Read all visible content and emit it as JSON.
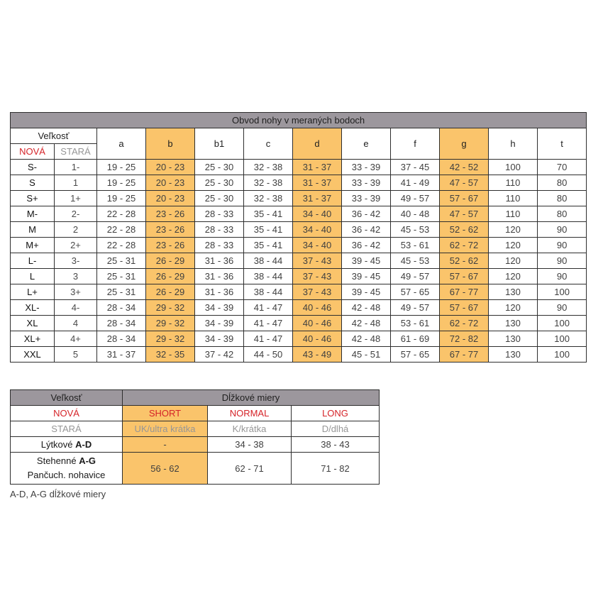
{
  "colors": {
    "band": "#9C979D",
    "orange": "#FAC46B",
    "red": "#D52328",
    "graytext": "#969696",
    "border": "#2E2E2E"
  },
  "main_table": {
    "title": "Obvod nohy v meraných bodoch",
    "size_header": "Veľkosť",
    "new_label": "NOVÁ",
    "old_label": "STARÁ",
    "measure_columns": [
      "a",
      "b",
      "b1",
      "c",
      "d",
      "e",
      "f",
      "g",
      "h",
      "t"
    ],
    "highlight_columns": [
      1,
      4,
      7
    ],
    "rows": [
      {
        "new": "S-",
        "old": "1-",
        "values": [
          "19 - 25",
          "20 - 23",
          "25 - 30",
          "32 - 38",
          "31 - 37",
          "33 - 39",
          "37 - 45",
          "42 - 52",
          "100",
          "70"
        ]
      },
      {
        "new": "S",
        "old": "1",
        "values": [
          "19 - 25",
          "20 - 23",
          "25 - 30",
          "32 - 38",
          "31 - 37",
          "33 - 39",
          "41 - 49",
          "47 - 57",
          "110",
          "80"
        ]
      },
      {
        "new": "S+",
        "old": "1+",
        "values": [
          "19 - 25",
          "20 - 23",
          "25 - 30",
          "32 - 38",
          "31 - 37",
          "33 - 39",
          "49 - 57",
          "57 - 67",
          "110",
          "80"
        ]
      },
      {
        "new": "M-",
        "old": "2-",
        "values": [
          "22 - 28",
          "23 - 26",
          "28 - 33",
          "35 - 41",
          "34 - 40",
          "36 - 42",
          "40 - 48",
          "47 - 57",
          "110",
          "80"
        ]
      },
      {
        "new": "M",
        "old": "2",
        "values": [
          "22 - 28",
          "23 - 26",
          "28 - 33",
          "35 - 41",
          "34 - 40",
          "36 - 42",
          "45 - 53",
          "52 - 62",
          "120",
          "90"
        ]
      },
      {
        "new": "M+",
        "old": "2+",
        "values": [
          "22 - 28",
          "23 - 26",
          "28 - 33",
          "35 - 41",
          "34 - 40",
          "36 - 42",
          "53 - 61",
          "62 - 72",
          "120",
          "90"
        ]
      },
      {
        "new": "L-",
        "old": "3-",
        "values": [
          "25 - 31",
          "26 - 29",
          "31 - 36",
          "38 - 44",
          "37 - 43",
          "39 - 45",
          "45 - 53",
          "52 - 62",
          "120",
          "90"
        ]
      },
      {
        "new": "L",
        "old": "3",
        "values": [
          "25 - 31",
          "26 - 29",
          "31 - 36",
          "38 - 44",
          "37 - 43",
          "39 - 45",
          "49 - 57",
          "57 - 67",
          "120",
          "90"
        ]
      },
      {
        "new": "L+",
        "old": "3+",
        "values": [
          "25 - 31",
          "26 - 29",
          "31 - 36",
          "38 - 44",
          "37 - 43",
          "39 - 45",
          "57 - 65",
          "67 - 77",
          "130",
          "100"
        ]
      },
      {
        "new": "XL-",
        "old": "4-",
        "values": [
          "28 - 34",
          "29 - 32",
          "34 - 39",
          "41 - 47",
          "40 - 46",
          "42 - 48",
          "49 - 57",
          "57 - 67",
          "120",
          "90"
        ]
      },
      {
        "new": "XL",
        "old": "4",
        "values": [
          "28 - 34",
          "29 - 32",
          "34 - 39",
          "41 - 47",
          "40 - 46",
          "42 - 48",
          "53 - 61",
          "62 - 72",
          "130",
          "100"
        ]
      },
      {
        "new": "XL+",
        "old": "4+",
        "values": [
          "28 - 34",
          "29 - 32",
          "34 - 39",
          "41 - 47",
          "40 - 46",
          "42 - 48",
          "61 - 69",
          "72 - 82",
          "130",
          "100"
        ]
      },
      {
        "new": "XXL",
        "old": "5",
        "values": [
          "31 - 37",
          "32 - 35",
          "37 - 42",
          "44 - 50",
          "43 - 49",
          "45 - 51",
          "57 - 65",
          "67 - 77",
          "130",
          "100"
        ]
      }
    ]
  },
  "length_table": {
    "size_header": "Veľkosť",
    "title": "Dĺžkové miery",
    "new_label": "NOVÁ",
    "old_label": "STARÁ",
    "variants": [
      "SHORT",
      "NORMAL",
      "LONG"
    ],
    "old_variants": [
      "UK/ultra krátka",
      "K/krátka",
      "D/dlhá"
    ],
    "rows": [
      {
        "label": "Lýtkové",
        "code": "A-D",
        "sublabel": "",
        "values": [
          "-",
          "34 - 38",
          "38 - 43"
        ]
      },
      {
        "label": "Stehenné",
        "code": "A-G",
        "sublabel": "Pančuch. nohavice",
        "values": [
          "56 - 62",
          "62 - 71",
          "71 - 82"
        ]
      }
    ]
  },
  "footnote": "A-D, A-G dĺžkové miery"
}
